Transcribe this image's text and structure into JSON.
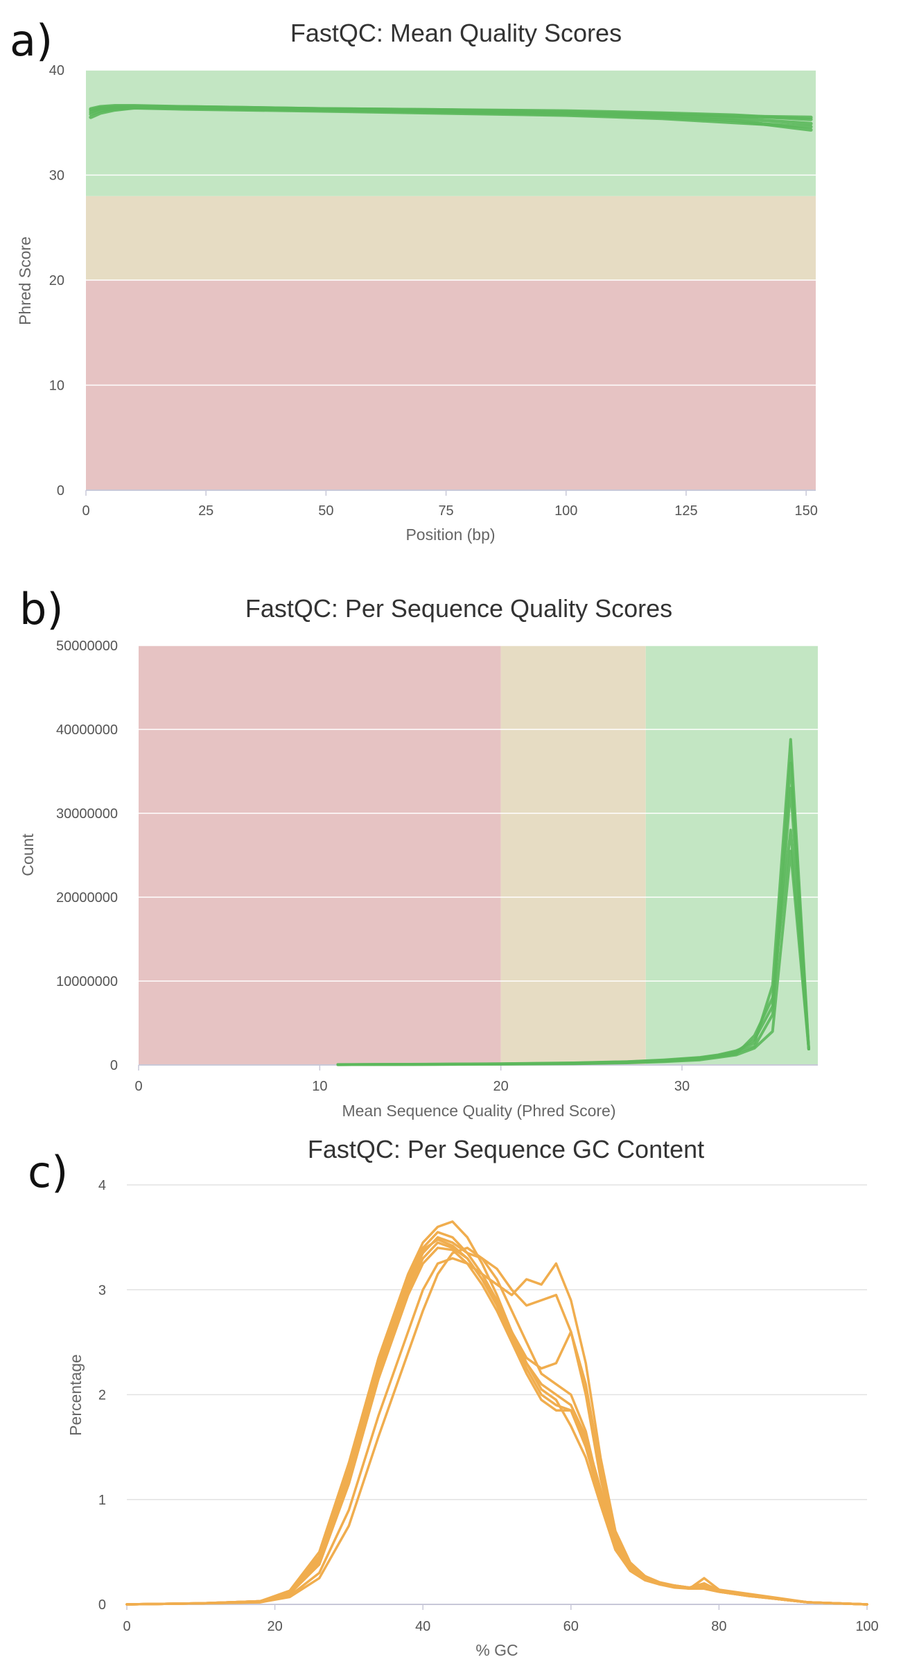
{
  "chart_data": [
    {
      "type": "line",
      "panel_label": "a)",
      "title": "FastQC: Mean Quality Scores",
      "xlabel": "Position (bp)",
      "ylabel": "Phred Score",
      "xlim": [
        0,
        152
      ],
      "ylim": [
        0,
        40
      ],
      "xticks": [
        "0",
        "25",
        "50",
        "75",
        "100",
        "125",
        "150"
      ],
      "yticks": [
        "0",
        "10",
        "20",
        "30",
        "40"
      ],
      "zones": [
        {
          "from": 0,
          "to": 20,
          "color": "#e6c3c3",
          "axis": "y"
        },
        {
          "from": 20,
          "to": 28,
          "color": "#e6dcc3",
          "axis": "y"
        },
        {
          "from": 28,
          "to": 40,
          "color": "#c3e6c3",
          "axis": "y"
        }
      ],
      "series_color": "#5cb85c",
      "series": [
        {
          "x": [
            1,
            3,
            6,
            10,
            20,
            35,
            50,
            75,
            100,
            120,
            135,
            151
          ],
          "values": [
            36.2,
            36.4,
            36.5,
            36.5,
            36.5,
            36.4,
            36.3,
            36.2,
            36.0,
            35.8,
            35.6,
            35.5
          ]
        },
        {
          "x": [
            1,
            3,
            6,
            10,
            20,
            35,
            50,
            75,
            100,
            120,
            135,
            151
          ],
          "values": [
            35.5,
            35.9,
            36.2,
            36.4,
            36.4,
            36.3,
            36.2,
            36.0,
            35.8,
            35.5,
            35.2,
            34.3
          ]
        },
        {
          "x": [
            1,
            3,
            6,
            10,
            20,
            35,
            50,
            75,
            100,
            120,
            135,
            151
          ],
          "values": [
            36.0,
            36.3,
            36.4,
            36.5,
            36.4,
            36.3,
            36.2,
            36.1,
            35.9,
            35.7,
            35.4,
            34.9
          ]
        },
        {
          "x": [
            1,
            3,
            6,
            10,
            20,
            35,
            50,
            75,
            100,
            120,
            135,
            151
          ],
          "values": [
            35.8,
            36.1,
            36.3,
            36.4,
            36.3,
            36.2,
            36.1,
            35.9,
            35.7,
            35.4,
            35.0,
            34.6
          ]
        },
        {
          "x": [
            1,
            3,
            6,
            10,
            20,
            35,
            50,
            75,
            100,
            120,
            135,
            151
          ],
          "values": [
            36.3,
            36.5,
            36.6,
            36.6,
            36.5,
            36.4,
            36.3,
            36.2,
            36.1,
            35.9,
            35.7,
            35.3
          ]
        }
      ]
    },
    {
      "type": "line",
      "panel_label": "b)",
      "title": "FastQC: Per Sequence Quality Scores",
      "xlabel": "Mean Sequence Quality (Phred Score)",
      "ylabel": "Count",
      "xlim": [
        0,
        37.5
      ],
      "ylim": [
        0,
        50000000
      ],
      "xticks": [
        "0",
        "10",
        "20",
        "30"
      ],
      "yticks": [
        "0",
        "10000000",
        "20000000",
        "30000000",
        "40000000",
        "50000000"
      ],
      "zones": [
        {
          "from": 0,
          "to": 20,
          "color": "#e6c3c3",
          "axis": "x"
        },
        {
          "from": 20,
          "to": 28,
          "color": "#e6dcc3",
          "axis": "x"
        },
        {
          "from": 28,
          "to": 37.5,
          "color": "#c3e6c3",
          "axis": "x"
        }
      ],
      "series_color": "#5cb85c",
      "series": [
        {
          "x": [
            11,
            15,
            20,
            24,
            27,
            29,
            31,
            32,
            33,
            34,
            35,
            36,
            37
          ],
          "values": [
            50000,
            80000,
            150000,
            250000,
            400000,
            600000,
            900000,
            1200000,
            1700000,
            2600000,
            9500000,
            38800000,
            1900000
          ]
        },
        {
          "x": [
            11,
            15,
            20,
            24,
            27,
            29,
            31,
            32,
            33,
            34,
            35,
            36,
            37
          ],
          "values": [
            40000,
            70000,
            120000,
            200000,
            350000,
            500000,
            800000,
            1100000,
            1500000,
            2200000,
            6000000,
            33000000,
            1900000
          ]
        },
        {
          "x": [
            11,
            15,
            20,
            24,
            27,
            29,
            31,
            32,
            33,
            34,
            35,
            36,
            37
          ],
          "values": [
            30000,
            60000,
            100000,
            180000,
            300000,
            450000,
            700000,
            1000000,
            1300000,
            3500000,
            8000000,
            28000000,
            1900000
          ]
        },
        {
          "x": [
            11,
            15,
            20,
            24,
            27,
            29,
            31,
            32,
            33,
            34,
            35,
            36,
            37
          ],
          "values": [
            30000,
            50000,
            90000,
            150000,
            250000,
            400000,
            600000,
            900000,
            1200000,
            2000000,
            4000000,
            25500000,
            1900000
          ]
        },
        {
          "x": [
            11,
            15,
            20,
            24,
            27,
            29,
            31,
            32,
            33,
            34,
            35,
            36,
            37
          ],
          "values": [
            45000,
            75000,
            130000,
            220000,
            380000,
            550000,
            850000,
            1150000,
            1600000,
            3000000,
            7000000,
            36000000,
            1900000
          ]
        }
      ]
    },
    {
      "type": "line",
      "panel_label": "c)",
      "title": "FastQC: Per Sequence GC Content",
      "xlabel": "% GC",
      "ylabel": "Percentage",
      "xlim": [
        0,
        100
      ],
      "ylim": [
        0,
        4
      ],
      "xticks": [
        "0",
        "20",
        "40",
        "60",
        "80",
        "100"
      ],
      "yticks": [
        "0",
        "1",
        "2",
        "3",
        "4"
      ],
      "series_color": "#f0ad4e",
      "series": [
        {
          "x": [
            0,
            10,
            18,
            22,
            26,
            30,
            34,
            38,
            40,
            42,
            44,
            46,
            48,
            50,
            52,
            54,
            56,
            58,
            60,
            62,
            64,
            66,
            68,
            70,
            72,
            74,
            76,
            78,
            80,
            84,
            88,
            92,
            96,
            100
          ],
          "values": [
            0.0,
            0.01,
            0.03,
            0.12,
            0.45,
            1.3,
            2.3,
            3.1,
            3.4,
            3.55,
            3.5,
            3.35,
            3.15,
            2.9,
            2.6,
            2.3,
            2.1,
            2.0,
            1.9,
            1.6,
            1.1,
            0.6,
            0.35,
            0.25,
            0.2,
            0.18,
            0.16,
            0.15,
            0.12,
            0.08,
            0.05,
            0.02,
            0.01,
            0.0
          ]
        },
        {
          "x": [
            0,
            10,
            18,
            22,
            26,
            30,
            34,
            38,
            40,
            42,
            44,
            46,
            48,
            50,
            52,
            54,
            56,
            58,
            60,
            62,
            64,
            66,
            68,
            70,
            72,
            74,
            76,
            78,
            80,
            84,
            88,
            92,
            96,
            100
          ],
          "values": [
            0.0,
            0.01,
            0.03,
            0.1,
            0.4,
            1.2,
            2.2,
            3.0,
            3.3,
            3.45,
            3.4,
            3.3,
            3.1,
            2.85,
            2.55,
            2.25,
            2.0,
            1.9,
            1.85,
            1.5,
            1.0,
            0.55,
            0.33,
            0.24,
            0.2,
            0.17,
            0.15,
            0.25,
            0.14,
            0.1,
            0.06,
            0.02,
            0.01,
            0.0
          ]
        },
        {
          "x": [
            0,
            10,
            18,
            22,
            26,
            30,
            34,
            38,
            40,
            42,
            44,
            46,
            48,
            50,
            52,
            54,
            56,
            58,
            60,
            62,
            64,
            66,
            68,
            70,
            72,
            74,
            76,
            78,
            80,
            84,
            88,
            92,
            96,
            100
          ],
          "values": [
            0.0,
            0.01,
            0.02,
            0.08,
            0.3,
            0.9,
            1.8,
            2.6,
            3.0,
            3.25,
            3.3,
            3.25,
            3.15,
            3.05,
            2.95,
            3.1,
            3.05,
            3.25,
            2.9,
            2.3,
            1.4,
            0.7,
            0.4,
            0.27,
            0.2,
            0.17,
            0.16,
            0.2,
            0.13,
            0.09,
            0.05,
            0.02,
            0.01,
            0.0
          ]
        },
        {
          "x": [
            0,
            10,
            18,
            22,
            26,
            30,
            34,
            38,
            40,
            42,
            44,
            46,
            48,
            50,
            52,
            54,
            56,
            58,
            60,
            62,
            64,
            66,
            68,
            70,
            72,
            74,
            76,
            78,
            80,
            84,
            88,
            92,
            96,
            100
          ],
          "values": [
            0.0,
            0.01,
            0.03,
            0.11,
            0.42,
            1.25,
            2.25,
            3.05,
            3.35,
            3.5,
            3.45,
            3.35,
            3.3,
            3.2,
            3.0,
            2.85,
            2.9,
            2.95,
            2.6,
            2.0,
            1.2,
            0.62,
            0.36,
            0.26,
            0.2,
            0.18,
            0.16,
            0.18,
            0.13,
            0.09,
            0.05,
            0.02,
            0.01,
            0.0
          ]
        },
        {
          "x": [
            0,
            10,
            18,
            22,
            26,
            30,
            34,
            38,
            40,
            42,
            44,
            46,
            48,
            50,
            52,
            54,
            56,
            58,
            60,
            62,
            64,
            66,
            68,
            70,
            72,
            74,
            76,
            78,
            80,
            84,
            88,
            92,
            96,
            100
          ],
          "values": [
            0.0,
            0.01,
            0.02,
            0.07,
            0.25,
            0.75,
            1.6,
            2.4,
            2.8,
            3.15,
            3.35,
            3.4,
            3.3,
            3.1,
            2.8,
            2.5,
            2.2,
            2.1,
            2.0,
            1.65,
            1.05,
            0.58,
            0.34,
            0.25,
            0.19,
            0.17,
            0.15,
            0.15,
            0.12,
            0.08,
            0.05,
            0.02,
            0.01,
            0.0
          ]
        },
        {
          "x": [
            0,
            10,
            18,
            22,
            26,
            30,
            34,
            38,
            40,
            42,
            44,
            46,
            48,
            50,
            52,
            54,
            56,
            58,
            60,
            62,
            64,
            66,
            68,
            70,
            72,
            74,
            76,
            78,
            80,
            84,
            88,
            92,
            96,
            100
          ],
          "values": [
            0.0,
            0.01,
            0.03,
            0.13,
            0.5,
            1.35,
            2.35,
            3.15,
            3.45,
            3.6,
            3.65,
            3.5,
            3.25,
            2.95,
            2.6,
            2.3,
            2.05,
            1.95,
            1.7,
            1.4,
            0.95,
            0.52,
            0.32,
            0.23,
            0.19,
            0.16,
            0.15,
            0.16,
            0.12,
            0.08,
            0.05,
            0.02,
            0.01,
            0.0
          ]
        },
        {
          "x": [
            0,
            10,
            18,
            22,
            26,
            30,
            34,
            38,
            40,
            42,
            44,
            46,
            48,
            50,
            52,
            54,
            56,
            58,
            60,
            62,
            64,
            66,
            68,
            70,
            72,
            74,
            76,
            78,
            80,
            84,
            88,
            92,
            96,
            100
          ],
          "values": [
            0.0,
            0.01,
            0.03,
            0.1,
            0.38,
            1.15,
            2.15,
            2.95,
            3.25,
            3.4,
            3.38,
            3.25,
            3.05,
            2.8,
            2.5,
            2.2,
            1.95,
            1.85,
            1.85,
            1.55,
            1.05,
            0.56,
            0.34,
            0.25,
            0.2,
            0.17,
            0.16,
            0.2,
            0.13,
            0.09,
            0.05,
            0.02,
            0.01,
            0.0
          ]
        },
        {
          "x": [
            0,
            10,
            18,
            22,
            26,
            30,
            34,
            38,
            40,
            42,
            44,
            46,
            48,
            50,
            52,
            54,
            56,
            58,
            60,
            62,
            64,
            66,
            68,
            70,
            72,
            74,
            76,
            78,
            80,
            84,
            88,
            92,
            96,
            100
          ],
          "values": [
            0.0,
            0.01,
            0.03,
            0.12,
            0.46,
            1.3,
            2.3,
            3.1,
            3.38,
            3.48,
            3.42,
            3.3,
            3.1,
            2.88,
            2.6,
            2.35,
            2.25,
            2.3,
            2.6,
            2.1,
            1.3,
            0.65,
            0.38,
            0.27,
            0.21,
            0.18,
            0.16,
            0.17,
            0.13,
            0.09,
            0.05,
            0.02,
            0.01,
            0.0
          ]
        }
      ]
    }
  ]
}
